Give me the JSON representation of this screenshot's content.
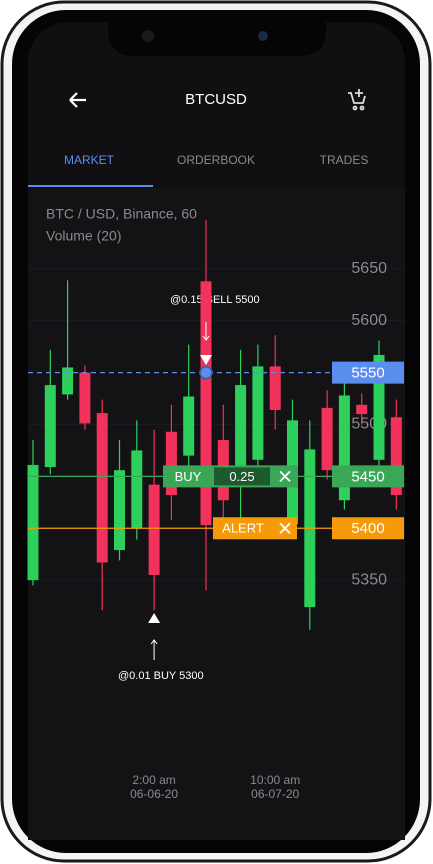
{
  "header": {
    "title": "BTCUSD"
  },
  "tabs": [
    "MARKET",
    "ORDERBOOK",
    "TRADES"
  ],
  "chart_data": {
    "type": "candlestick",
    "legend": [
      "BTC / USD, Binance, 60",
      "Volume (20)"
    ],
    "categories": [
      null,
      null,
      null,
      null,
      null,
      null,
      null,
      "2:00 am\n06-06-20",
      null,
      null,
      null,
      null,
      null,
      null,
      "10:00 am\n06-07-20",
      null,
      null,
      null,
      null,
      null,
      null,
      null
    ],
    "open": [
      5350,
      5459,
      5529,
      5550,
      5511,
      5379,
      5400,
      5442,
      5493,
      5470,
      5638,
      5485,
      5451,
      5466,
      5556,
      5404,
      5324,
      5516,
      5427,
      5519,
      5466,
      5507
    ],
    "high": [
      5485,
      5572,
      5639,
      5557,
      5524,
      5485,
      5504,
      5495,
      5519,
      5577,
      5697,
      5519,
      5572,
      5577,
      5586,
      5524,
      5504,
      5533,
      5543,
      5530,
      5581,
      5524
    ],
    "low": [
      5345,
      5452,
      5524,
      5495,
      5321,
      5369,
      5389,
      5321,
      5408,
      5447,
      5340,
      5398,
      5408,
      5456,
      5495,
      5395,
      5302,
      5447,
      5418,
      5500,
      5456,
      5418
    ],
    "close": [
      5461,
      5538,
      5555,
      5501,
      5367,
      5456,
      5475,
      5355,
      5432,
      5527,
      5403,
      5427,
      5538,
      5556,
      5514,
      5504,
      5476,
      5456,
      5528,
      5510,
      5567,
      5432
    ],
    "up_color": "#2fcf5c",
    "down_color": "#f2325a",
    "ylim": [
      5300,
      5700
    ],
    "yticks": [
      5350,
      5500,
      5600,
      5650
    ],
    "price_lines": [
      {
        "value": 5550,
        "color": "#5b8def"
      },
      {
        "value": 5450,
        "color": "#3aa757"
      },
      {
        "value": 5400,
        "color": "#f59b0a"
      }
    ],
    "order": {
      "side": "BUY",
      "quantity": 0.25
    },
    "alert": "ALERT",
    "annotations": [
      "@0.15 SELL 5500",
      "@0.01 BUY 5300"
    ]
  }
}
